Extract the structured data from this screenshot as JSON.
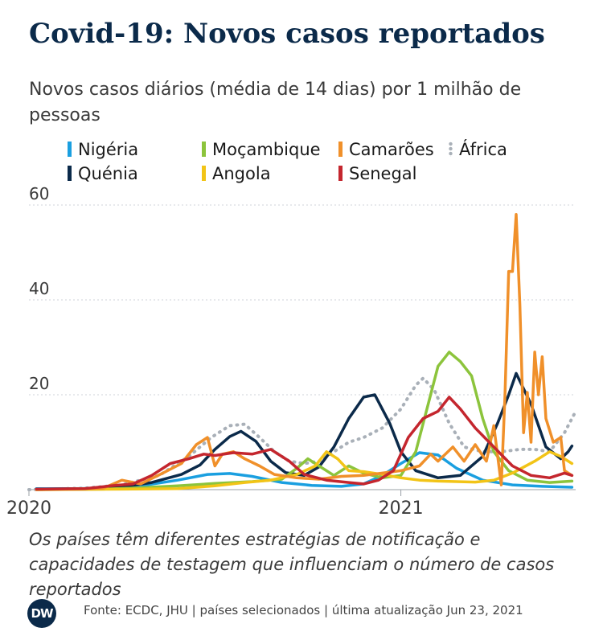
{
  "header": {
    "title": "Covid-19: Novos casos reportados",
    "subtitle": "Novos casos diários (média de 14 dias) por 1 milhão de pessoas"
  },
  "footer": {
    "note": "Os países têm diferentes estratégias de notificação e capacidades de testagem que influenciam o número de casos reportados",
    "source": "Fonte: ECDC, JHU | países selecionados | última atualização Jun 23, 2021",
    "logo": "DW"
  },
  "chart_data": {
    "type": "line",
    "title": "Covid-19: Novos casos reportados",
    "ylabel": "",
    "xlabel": "",
    "xlim": [
      2020.0,
      2021.47
    ],
    "ylim": [
      0,
      60
    ],
    "x_ticks": [
      {
        "value": 2020.0,
        "label": "2020"
      },
      {
        "value": 2021.0,
        "label": "2021"
      }
    ],
    "y_ticks": [
      20,
      40,
      60
    ],
    "grid": true,
    "legend_position": "top",
    "series": [
      {
        "name": "Nigéria",
        "color": "#1a9fe0",
        "dashed": false,
        "points": [
          [
            2020.02,
            0.2
          ],
          [
            2020.12,
            0.2
          ],
          [
            2020.2,
            0.3
          ],
          [
            2020.3,
            0.8
          ],
          [
            2020.4,
            2.0
          ],
          [
            2020.48,
            3.2
          ],
          [
            2020.54,
            3.4
          ],
          [
            2020.6,
            2.8
          ],
          [
            2020.68,
            1.5
          ],
          [
            2020.76,
            0.9
          ],
          [
            2020.84,
            0.7
          ],
          [
            2020.9,
            1.2
          ],
          [
            2020.95,
            3.0
          ],
          [
            2021.0,
            5.5
          ],
          [
            2021.05,
            7.8
          ],
          [
            2021.1,
            7.3
          ],
          [
            2021.15,
            4.5
          ],
          [
            2021.22,
            2.0
          ],
          [
            2021.3,
            1.0
          ],
          [
            2021.38,
            0.7
          ],
          [
            2021.46,
            0.5
          ]
        ]
      },
      {
        "name": "Quénia",
        "color": "#0b2a4a",
        "dashed": false,
        "points": [
          [
            2020.02,
            0.1
          ],
          [
            2020.15,
            0.2
          ],
          [
            2020.25,
            0.6
          ],
          [
            2020.33,
            1.5
          ],
          [
            2020.41,
            3.2
          ],
          [
            2020.46,
            5.2
          ],
          [
            2020.5,
            8.5
          ],
          [
            2020.54,
            11.2
          ],
          [
            2020.57,
            12.3
          ],
          [
            2020.61,
            10.2
          ],
          [
            2020.65,
            6.0
          ],
          [
            2020.69,
            3.6
          ],
          [
            2020.74,
            3.0
          ],
          [
            2020.78,
            4.8
          ],
          [
            2020.82,
            9.0
          ],
          [
            2020.86,
            15.0
          ],
          [
            2020.9,
            19.5
          ],
          [
            2020.93,
            20.0
          ],
          [
            2020.97,
            14.0
          ],
          [
            2021.0,
            8.0
          ],
          [
            2021.04,
            4.0
          ],
          [
            2021.1,
            2.5
          ],
          [
            2021.16,
            3.0
          ],
          [
            2021.22,
            7.0
          ],
          [
            2021.26,
            14.0
          ],
          [
            2021.29,
            20.0
          ],
          [
            2021.31,
            24.5
          ],
          [
            2021.35,
            18.0
          ],
          [
            2021.39,
            9.0
          ],
          [
            2021.43,
            6.5
          ],
          [
            2021.45,
            8.0
          ],
          [
            2021.46,
            9.2
          ]
        ]
      },
      {
        "name": "Moçambique",
        "color": "#8cc43c",
        "dashed": false,
        "points": [
          [
            2020.02,
            0.0
          ],
          [
            2020.2,
            0.1
          ],
          [
            2020.3,
            0.4
          ],
          [
            2020.4,
            0.8
          ],
          [
            2020.5,
            1.3
          ],
          [
            2020.6,
            1.7
          ],
          [
            2020.68,
            2.2
          ],
          [
            2020.72,
            4.5
          ],
          [
            2020.75,
            6.5
          ],
          [
            2020.78,
            5.0
          ],
          [
            2020.82,
            3.0
          ],
          [
            2020.86,
            5.0
          ],
          [
            2020.9,
            3.5
          ],
          [
            2020.95,
            2.5
          ],
          [
            2021.0,
            3.0
          ],
          [
            2021.04,
            8.0
          ],
          [
            2021.07,
            17.0
          ],
          [
            2021.1,
            26.0
          ],
          [
            2021.13,
            29.0
          ],
          [
            2021.16,
            27.0
          ],
          [
            2021.19,
            24.0
          ],
          [
            2021.22,
            15.0
          ],
          [
            2021.25,
            8.0
          ],
          [
            2021.29,
            4.0
          ],
          [
            2021.34,
            2.0
          ],
          [
            2021.4,
            1.5
          ],
          [
            2021.46,
            1.8
          ]
        ]
      },
      {
        "name": "Angola",
        "color": "#f2c417",
        "dashed": false,
        "points": [
          [
            2020.02,
            0.0
          ],
          [
            2020.25,
            0.1
          ],
          [
            2020.4,
            0.2
          ],
          [
            2020.5,
            0.8
          ],
          [
            2020.58,
            1.5
          ],
          [
            2020.65,
            2.0
          ],
          [
            2020.72,
            3.2
          ],
          [
            2020.77,
            5.0
          ],
          [
            2020.8,
            8.0
          ],
          [
            2020.83,
            6.5
          ],
          [
            2020.86,
            4.0
          ],
          [
            2020.9,
            3.8
          ],
          [
            2020.95,
            3.2
          ],
          [
            2021.0,
            2.5
          ],
          [
            2021.05,
            2.0
          ],
          [
            2021.1,
            1.8
          ],
          [
            2021.15,
            1.7
          ],
          [
            2021.2,
            1.6
          ],
          [
            2021.25,
            2.0
          ],
          [
            2021.3,
            3.5
          ],
          [
            2021.36,
            6.0
          ],
          [
            2021.4,
            8.0
          ],
          [
            2021.43,
            7.0
          ],
          [
            2021.46,
            5.5
          ]
        ]
      },
      {
        "name": "Camarões",
        "color": "#f0902a",
        "dashed": false,
        "points": [
          [
            2020.02,
            0.0
          ],
          [
            2020.2,
            0.3
          ],
          [
            2020.25,
            2.0
          ],
          [
            2020.3,
            1.2
          ],
          [
            2020.36,
            3.5
          ],
          [
            2020.41,
            5.5
          ],
          [
            2020.45,
            9.5
          ],
          [
            2020.48,
            11.0
          ],
          [
            2020.5,
            5.0
          ],
          [
            2020.52,
            7.5
          ],
          [
            2020.55,
            8.0
          ],
          [
            2020.58,
            6.5
          ],
          [
            2020.62,
            5.0
          ],
          [
            2020.66,
            3.2
          ],
          [
            2020.72,
            2.5
          ],
          [
            2020.78,
            2.2
          ],
          [
            2020.84,
            2.8
          ],
          [
            2020.9,
            3.0
          ],
          [
            2020.95,
            3.5
          ],
          [
            2021.0,
            4.0
          ],
          [
            2021.05,
            5.0
          ],
          [
            2021.08,
            7.5
          ],
          [
            2021.1,
            6.0
          ],
          [
            2021.14,
            9.0
          ],
          [
            2021.17,
            6.0
          ],
          [
            2021.2,
            9.5
          ],
          [
            2021.23,
            6.0
          ],
          [
            2021.25,
            13.5
          ],
          [
            2021.27,
            1.0
          ],
          [
            2021.28,
            20.0
          ],
          [
            2021.29,
            46.0
          ],
          [
            2021.3,
            46.0
          ],
          [
            2021.31,
            58.0
          ],
          [
            2021.32,
            39.0
          ],
          [
            2021.33,
            12.0
          ],
          [
            2021.34,
            20.5
          ],
          [
            2021.35,
            10.0
          ],
          [
            2021.36,
            29.0
          ],
          [
            2021.37,
            20.0
          ],
          [
            2021.38,
            28.0
          ],
          [
            2021.39,
            15.0
          ],
          [
            2021.41,
            10.0
          ],
          [
            2021.43,
            11.0
          ],
          [
            2021.44,
            4.0
          ],
          [
            2021.46,
            3.0
          ]
        ]
      },
      {
        "name": "Senegal",
        "color": "#c4262e",
        "dashed": false,
        "points": [
          [
            2020.02,
            0.1
          ],
          [
            2020.15,
            0.2
          ],
          [
            2020.22,
            0.8
          ],
          [
            2020.28,
            1.2
          ],
          [
            2020.33,
            3.0
          ],
          [
            2020.38,
            5.5
          ],
          [
            2020.43,
            6.5
          ],
          [
            2020.47,
            7.5
          ],
          [
            2020.5,
            7.2
          ],
          [
            2020.55,
            7.8
          ],
          [
            2020.6,
            7.5
          ],
          [
            2020.65,
            8.5
          ],
          [
            2020.7,
            6.0
          ],
          [
            2020.74,
            3.2
          ],
          [
            2020.8,
            2.0
          ],
          [
            2020.86,
            1.5
          ],
          [
            2020.9,
            1.2
          ],
          [
            2020.94,
            2.0
          ],
          [
            2020.98,
            4.0
          ],
          [
            2021.02,
            11.0
          ],
          [
            2021.06,
            15.0
          ],
          [
            2021.1,
            16.5
          ],
          [
            2021.13,
            19.5
          ],
          [
            2021.16,
            17.0
          ],
          [
            2021.2,
            13.0
          ],
          [
            2021.25,
            9.0
          ],
          [
            2021.3,
            5.0
          ],
          [
            2021.35,
            3.0
          ],
          [
            2021.4,
            2.5
          ],
          [
            2021.44,
            3.5
          ],
          [
            2021.46,
            3.0
          ]
        ]
      },
      {
        "name": "África",
        "color": "#a9b0b8",
        "dashed": true,
        "points": [
          [
            2020.0,
            0.0
          ],
          [
            2020.15,
            0.3
          ],
          [
            2020.25,
            1.0
          ],
          [
            2020.35,
            3.0
          ],
          [
            2020.43,
            7.0
          ],
          [
            2020.49,
            11.0
          ],
          [
            2020.54,
            13.5
          ],
          [
            2020.58,
            13.8
          ],
          [
            2020.62,
            11.0
          ],
          [
            2020.66,
            8.0
          ],
          [
            2020.7,
            6.0
          ],
          [
            2020.74,
            5.5
          ],
          [
            2020.78,
            6.0
          ],
          [
            2020.82,
            8.0
          ],
          [
            2020.86,
            10.0
          ],
          [
            2020.9,
            11.0
          ],
          [
            2020.95,
            13.0
          ],
          [
            2021.0,
            17.0
          ],
          [
            2021.04,
            22.0
          ],
          [
            2021.06,
            23.5
          ],
          [
            2021.09,
            21.0
          ],
          [
            2021.13,
            14.0
          ],
          [
            2021.17,
            9.0
          ],
          [
            2021.22,
            8.0
          ],
          [
            2021.27,
            8.0
          ],
          [
            2021.32,
            8.5
          ],
          [
            2021.36,
            8.5
          ],
          [
            2021.4,
            8.0
          ],
          [
            2021.44,
            12.0
          ],
          [
            2021.47,
            16.5
          ]
        ]
      }
    ]
  }
}
